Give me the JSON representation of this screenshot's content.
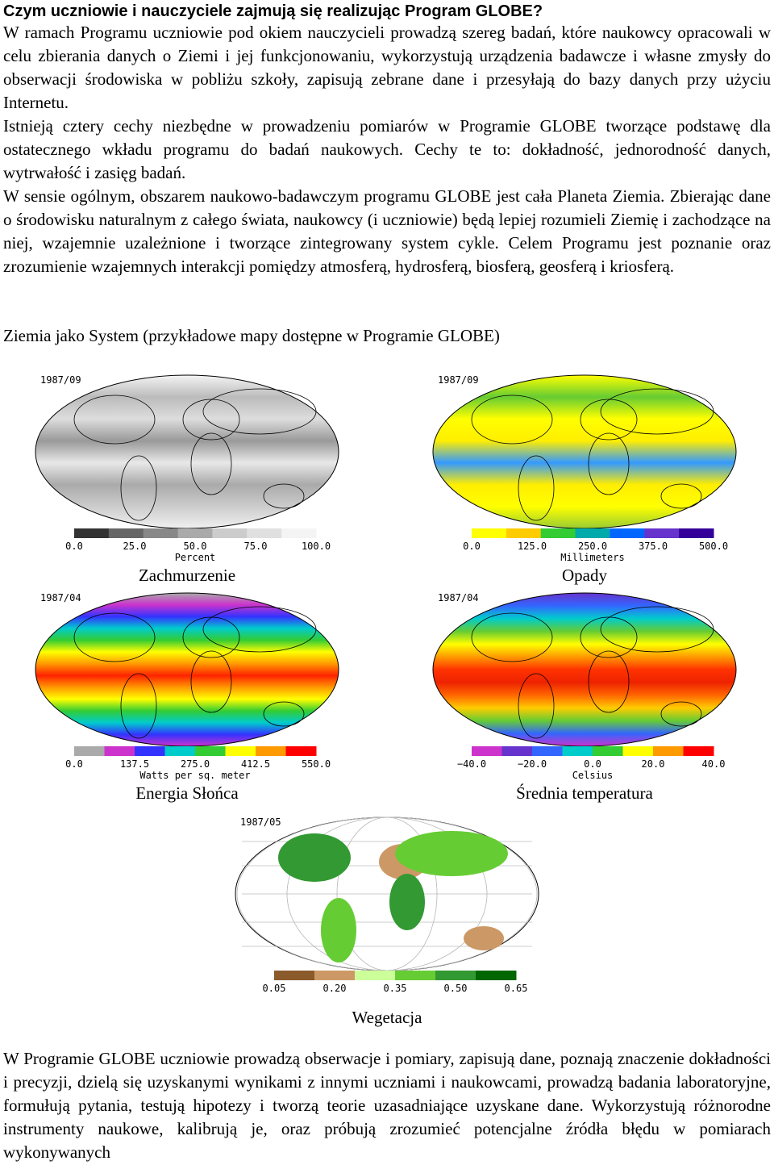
{
  "heading": "Czym uczniowie i nauczyciele zajmują się realizując Program GLOBE?",
  "paragraphs": [
    "W ramach Programu uczniowie pod okiem nauczycieli prowadzą szereg badań, które naukowcy opracowali w celu zbierania danych o Ziemi i jej funkcjonowaniu, wykorzystują urządzenia badawcze i własne zmysły do obserwacji środowiska w pobliżu szkoły, zapisują zebrane dane i przesyłają do bazy danych przy użyciu Internetu.",
    "Istnieją cztery cechy niezbędne w prowadzeniu pomiarów w Programie GLOBE tworzące podstawę dla ostatecznego wkładu programu do badań naukowych. Cechy te to: dokładność, jednorodność danych, wytrwałość i zasięg badań.",
    "W sensie ogólnym, obszarem naukowo-badawczym programu GLOBE jest cała Planeta Ziemia. Zbierając dane o środowisku naturalnym z całego świata, naukowcy (i uczniowie) będą lepiej rozumieli Ziemię i zachodzące na niej, wzajemnie uzależnione i tworzące zintegrowany system cykle. Celem Programu jest poznanie oraz zrozumienie wzajemnych interakcji pomiędzy atmosferą, hydrosferą, biosferą, geosferą i kriosferą."
  ],
  "section_title": "Ziemia jako System (przykładowe mapy dostępne w Programie GLOBE)",
  "maps": [
    {
      "date": "1987/09",
      "ticks": [
        "0.0",
        "25.0",
        "50.0",
        "75.0",
        "100.0"
      ],
      "unit": "Percent",
      "caption": "Zachmurzenie"
    },
    {
      "date": "1987/09",
      "ticks": [
        "0.0",
        "125.0",
        "250.0",
        "375.0",
        "500.0"
      ],
      "unit": "Millimeters",
      "caption": "Opady"
    },
    {
      "date": "1987/04",
      "ticks": [
        "0.0",
        "137.5",
        "275.0",
        "412.5",
        "550.0"
      ],
      "unit": "Watts per sq. meter",
      "caption": "Energia Słońca"
    },
    {
      "date": "1987/04",
      "ticks": [
        "−40.0",
        "−20.0",
        "0.0",
        "20.0",
        "40.0"
      ],
      "unit": "Celsius",
      "caption": "Średnia temperatura"
    },
    {
      "date": "1987/05",
      "ticks": [
        "0.05",
        "0.20",
        "0.35",
        "0.50",
        "0.65"
      ],
      "caption": "Wegetacja"
    }
  ],
  "closing": "W Programie GLOBE uczniowie prowadzą obserwacje i pomiary, zapisują dane, poznają znaczenie dokładności i precyzji, dzielą się uzyskanymi wynikami z innymi uczniami i naukowcami, prowadzą badania laboratoryjne, formułują pytania, testują hipotezy i tworzą teorie uzasadniające uzyskane dane. Wykorzystują różnorodne instrumenty naukowe, kalibrują je, oraz próbują zrozumieć potencjalne źródła błędu w pomiarach wykonywanych"
}
